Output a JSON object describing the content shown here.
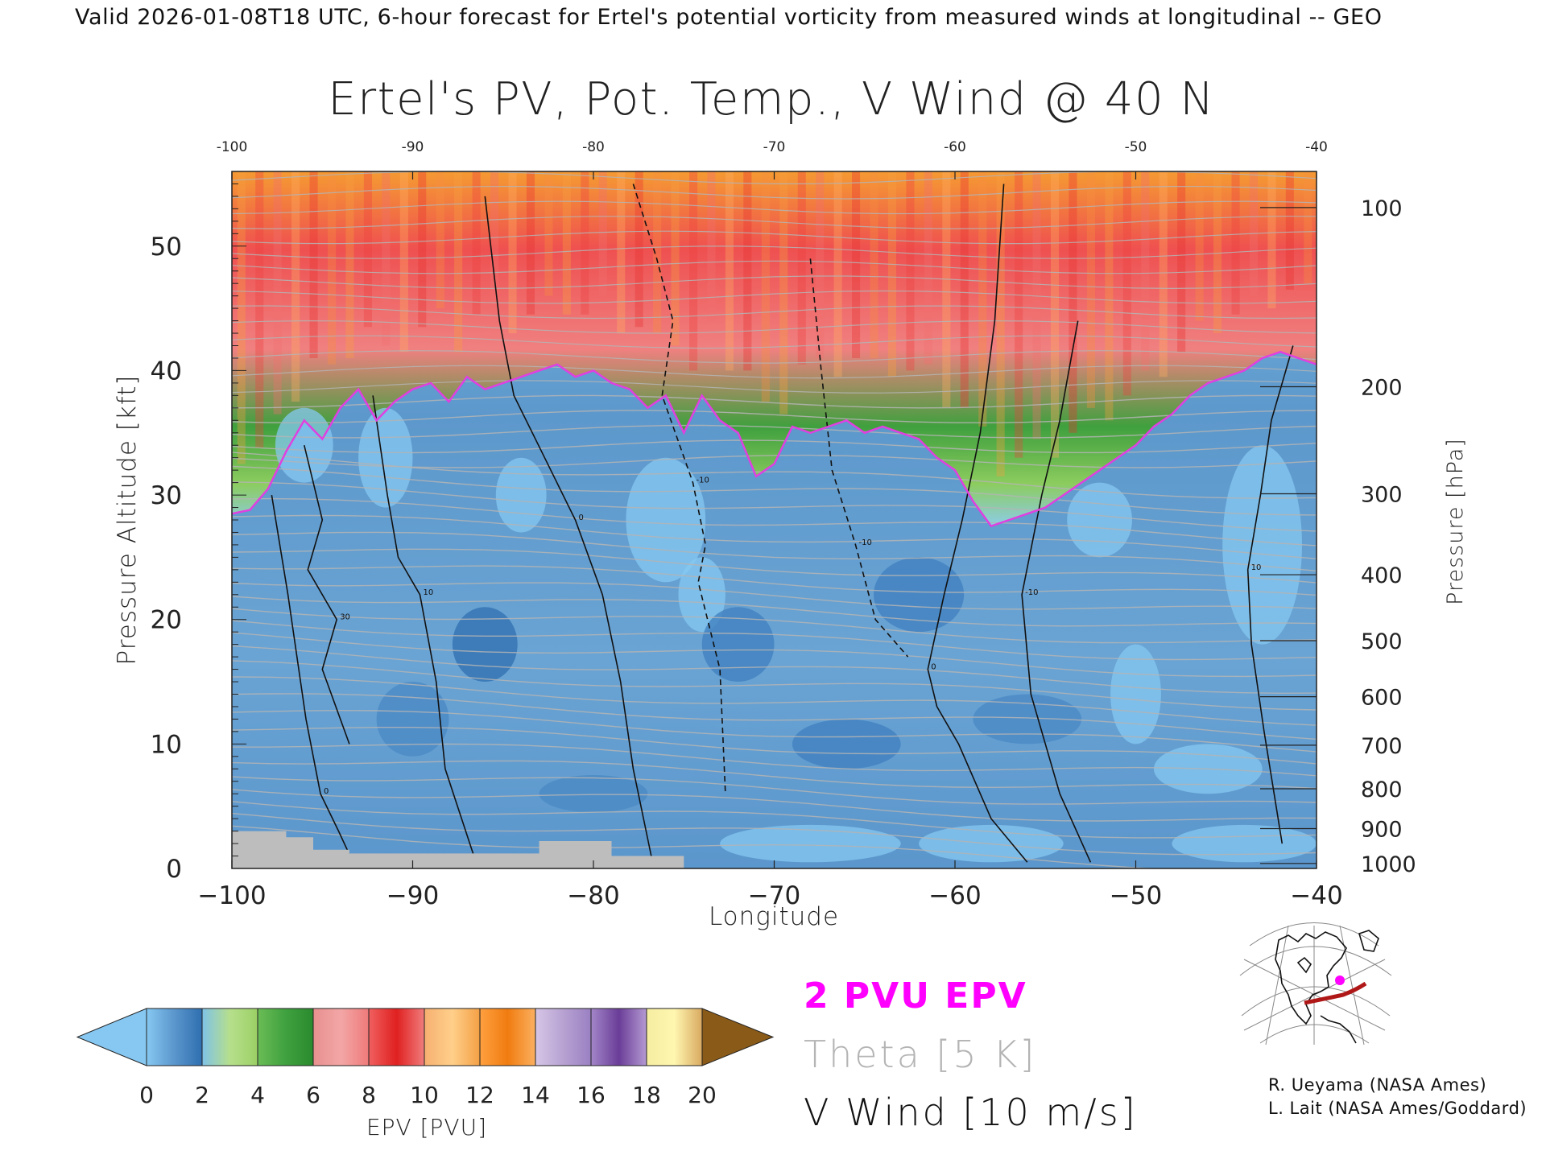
{
  "header": {
    "valid_line": "Valid 2026-01-08T18 UTC, 6-hour forecast for Ertel's potential vorticity from measured winds at longitudinal -- GEO"
  },
  "chart_data": {
    "type": "heatmap",
    "title": "Ertel's PV, Pot. Temp., V Wind @ 40 N",
    "xlabel": "Longitude",
    "ylabel": "Pressure Altitude [kft]",
    "y2label": "Pressure [hPa]",
    "xlim": [
      -100,
      -40
    ],
    "ylim": [
      0,
      56
    ],
    "x_ticks": [
      -100,
      -90,
      -80,
      -70,
      -60,
      -50,
      -40
    ],
    "x_tick_labels": [
      "−100",
      "−90",
      "−80",
      "−70",
      "−60",
      "−50",
      "−40"
    ],
    "top_tick_labels": [
      "-100",
      "-90",
      "-80",
      "-70",
      "-60",
      "-50",
      "-40"
    ],
    "y_ticks": [
      0,
      10,
      20,
      30,
      40,
      50
    ],
    "y_tick_labels": [
      "0",
      "10",
      "20",
      "30",
      "40",
      "50"
    ],
    "pressure_ticks": [
      {
        "hPa": 100,
        "label": "100",
        "kft": 53.1
      },
      {
        "hPa": 200,
        "label": "200",
        "kft": 38.7
      },
      {
        "hPa": 300,
        "label": "300",
        "kft": 30.1
      },
      {
        "hPa": 400,
        "label": "400",
        "kft": 23.6
      },
      {
        "hPa": 500,
        "label": "500",
        "kft": 18.3
      },
      {
        "hPa": 600,
        "label": "600",
        "kft": 13.8
      },
      {
        "hPa": 700,
        "label": "700",
        "kft": 9.9
      },
      {
        "hPa": 800,
        "label": "800",
        "kft": 6.4
      },
      {
        "hPa": 900,
        "label": "900",
        "kft": 3.2
      },
      {
        "hPa": 1000,
        "label": "1000",
        "kft": 0.4
      }
    ],
    "tropopause_2pvu": {
      "lon": [
        -100,
        -99,
        -98,
        -97,
        -96,
        -95,
        -94,
        -93,
        -92,
        -91,
        -90,
        -89,
        -88,
        -87,
        -86,
        -85,
        -84,
        -83,
        -82,
        -81,
        -80,
        -79,
        -78,
        -77,
        -76,
        -75,
        -74,
        -73,
        -72,
        -71,
        -70,
        -69,
        -68,
        -67,
        -66,
        -65,
        -64,
        -63,
        -62,
        -61,
        -60,
        -59,
        -58,
        -57,
        -56,
        -55,
        -54,
        -53,
        -52,
        -51,
        -50,
        -49,
        -48,
        -47,
        -46,
        -45,
        -44,
        -43,
        -42,
        -41,
        -40
      ],
      "kft": [
        28.5,
        28.8,
        30.5,
        33.5,
        36.0,
        34.5,
        37.0,
        38.5,
        36.0,
        37.5,
        38.5,
        39.0,
        37.5,
        39.5,
        38.5,
        39.0,
        39.5,
        40.0,
        40.5,
        39.5,
        40.0,
        39.0,
        38.5,
        37.0,
        38.0,
        35.0,
        38.0,
        36.0,
        35.0,
        31.5,
        32.5,
        35.5,
        35.0,
        35.5,
        36.0,
        35.0,
        35.5,
        35.0,
        34.5,
        33.0,
        32.0,
        29.5,
        27.5,
        28.0,
        28.5,
        29.0,
        30.0,
        31.0,
        32.0,
        33.0,
        34.0,
        35.5,
        36.5,
        38.0,
        39.0,
        39.5,
        40.0,
        41.0,
        41.5,
        41.0,
        40.5
      ]
    },
    "v_wind_contours": [
      {
        "label": "0",
        "style": "solid",
        "lon": [
          -97.8,
          -96.9,
          -95.9,
          -95.1,
          -94.1,
          -93.3
        ],
        "kft": [
          30,
          22,
          12,
          6,
          3,
          0.5
        ]
      },
      {
        "label": "30",
        "style": "solid",
        "lon": [
          -96.0,
          -95.0,
          -95.8,
          -94.2,
          -95.0,
          -93.5
        ],
        "kft": [
          34,
          28,
          24,
          20,
          16,
          10
        ]
      },
      {
        "label": "10",
        "style": "solid",
        "lon": [
          -92.2,
          -91.4,
          -90.8,
          -89.6,
          -88.7,
          -88.2,
          -86.5
        ],
        "kft": [
          38,
          30,
          25,
          22,
          15,
          8,
          0.5
        ]
      },
      {
        "label": "0",
        "style": "solid",
        "lon": [
          -86.0,
          -85.2,
          -84.4,
          -82.7,
          -81.0,
          -79.5,
          -78.5,
          -77.8,
          -76.8
        ],
        "kft": [
          54,
          44,
          38,
          33,
          28,
          22,
          15,
          8,
          1
        ]
      },
      {
        "label": "-10",
        "style": "dashed",
        "lon": [
          -77.8,
          -76.5,
          -75.6,
          -76.2,
          -74.5,
          -73.8,
          -74.2,
          -73.0,
          -72.7
        ],
        "kft": [
          55,
          49,
          44,
          38,
          31,
          26,
          23,
          16,
          6
        ]
      },
      {
        "label": "-10",
        "style": "dashed",
        "lon": [
          -68.0,
          -67.4,
          -66.8,
          -65.5,
          -64.4,
          -63.2,
          -62.6
        ],
        "kft": [
          49,
          40,
          32,
          26,
          20,
          18,
          17
        ]
      },
      {
        "label": "0",
        "style": "solid",
        "lon": [
          -57.3,
          -57.8,
          -58.6,
          -59.6,
          -60.6,
          -61.5,
          -61.0,
          -59.8,
          -58.0,
          -56.0
        ],
        "kft": [
          55,
          44,
          35,
          28,
          22,
          16,
          13,
          10,
          4,
          0.5
        ]
      },
      {
        "label": "-10",
        "style": "solid",
        "lon": [
          -53.2,
          -54.2,
          -55.2,
          -56.3,
          -55.8,
          -54.2,
          -52.5
        ],
        "kft": [
          44,
          36,
          30,
          22,
          14,
          6,
          0.5
        ]
      },
      {
        "label": "10",
        "style": "solid",
        "lon": [
          -41.3,
          -42.5,
          -43.1,
          -43.8,
          -43.6,
          -42.9,
          -41.9
        ],
        "kft": [
          42,
          36,
          30,
          24,
          18,
          11,
          2
        ]
      }
    ],
    "theta_contour_interval_K": 5,
    "colorbar": {
      "label": "EPV [PVU]",
      "ticks": [
        0,
        2,
        4,
        6,
        8,
        10,
        12,
        14,
        16,
        18,
        20
      ],
      "tick_labels": [
        "0",
        "2",
        "4",
        "6",
        "8",
        "10",
        "12",
        "14",
        "16",
        "18",
        "20"
      ],
      "bands": [
        {
          "from": 0,
          "to": 2,
          "colors": [
            "#86c8f2",
            "#5b96cc",
            "#2f6fb0"
          ]
        },
        {
          "from": 2,
          "to": 4,
          "colors": [
            "#7fc2e8",
            "#b6df8c",
            "#9bd065"
          ]
        },
        {
          "from": 4,
          "to": 6,
          "colors": [
            "#6bbd55",
            "#3fa13f",
            "#2a8a2e"
          ]
        },
        {
          "from": 6,
          "to": 8,
          "colors": [
            "#e89090",
            "#f3a6a6",
            "#ef7a7a"
          ]
        },
        {
          "from": 8,
          "to": 10,
          "colors": [
            "#f06060",
            "#e02020",
            "#f07c7c"
          ]
        },
        {
          "from": 10,
          "to": 12,
          "colors": [
            "#f6b070",
            "#ffcf8a",
            "#f4a045"
          ]
        },
        {
          "from": 12,
          "to": 14,
          "colors": [
            "#ffa040",
            "#f07c10",
            "#fbb060"
          ]
        },
        {
          "from": 14,
          "to": 16,
          "colors": [
            "#d6c6e6",
            "#b7a2d2",
            "#9a80c2"
          ]
        },
        {
          "from": 16,
          "to": 18,
          "colors": [
            "#a386c8",
            "#6a3d98",
            "#b49ad2"
          ]
        },
        {
          "from": 18,
          "to": 20,
          "colors": [
            "#f5eda0",
            "#fff6b0",
            "#d9a960"
          ]
        }
      ],
      "under_color": "#86c8f2",
      "over_color": "#8a5a18"
    }
  },
  "legend": {
    "pv_label": "2 PVU EPV",
    "pv_color": "#ff00ff",
    "theta_label": "Theta [5 K]",
    "theta_color": "#b4b4b4",
    "wind_label": "V Wind [10 m/s]",
    "wind_color": "#111111"
  },
  "credits": {
    "line1": "R. Ueyama (NASA Ames)",
    "line2": "L. Lait (NASA Ames/Goddard)"
  },
  "colors": {
    "tropo_line": "#e040e0",
    "terrain": "#bdbdbd",
    "map_track": "#b01818",
    "map_marker": "#ff00ff"
  }
}
